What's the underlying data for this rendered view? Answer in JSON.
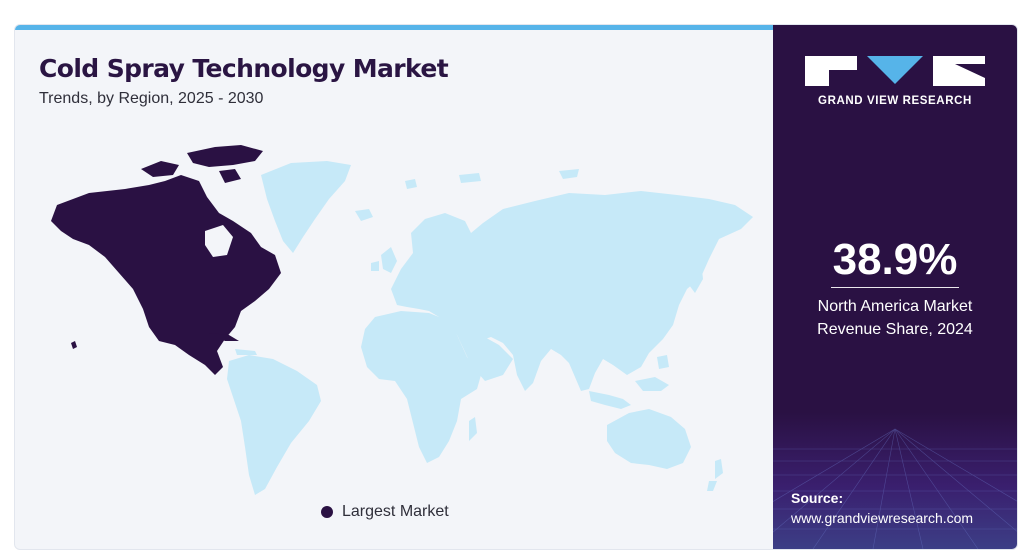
{
  "header": {
    "title": "Cold Spray Technology Market",
    "subtitle": "Trends, by Region, 2025 - 2030"
  },
  "brand": {
    "name": "GRAND VIEW RESEARCH"
  },
  "stat": {
    "value": "38.9%",
    "label_line1": "North America Market",
    "label_line2": "Revenue Share, 2024"
  },
  "legend": {
    "label": "Largest Market",
    "color": "#2a1143"
  },
  "map": {
    "highlighted_region": "North America",
    "highlight_color": "#2a1143",
    "other_color": "#c6e9f8"
  },
  "source": {
    "label": "Source:",
    "url": "www.grandviewresearch.com"
  },
  "colors": {
    "accent": "#56b4e9",
    "panel": "#2a1143",
    "background": "#f3f5f9"
  }
}
